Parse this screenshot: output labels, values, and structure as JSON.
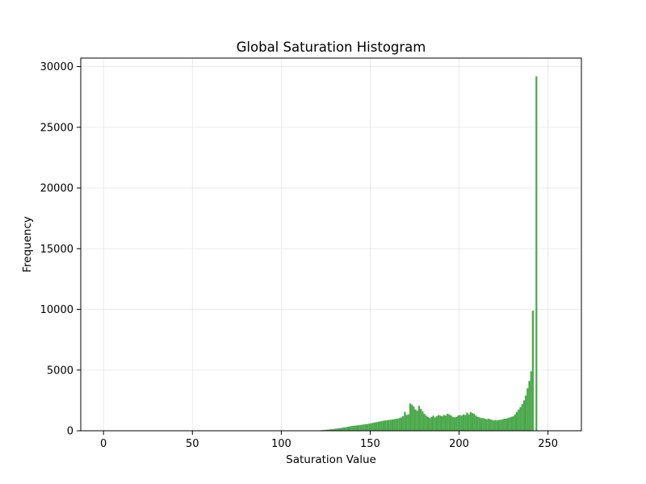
{
  "chart_data": {
    "type": "bar",
    "title": "Global Saturation Histogram",
    "xlabel": "Saturation Value",
    "ylabel": "Frequency",
    "xlim": [
      -12.8,
      268.8
    ],
    "ylim": [
      0,
      30700
    ],
    "xticks": [
      0,
      50,
      100,
      150,
      200,
      250
    ],
    "yticks": [
      0,
      5000,
      10000,
      15000,
      20000,
      25000,
      30000
    ],
    "grid": true,
    "bar_color": "#4aa84a",
    "bins_start": 120,
    "values": [
      0,
      0,
      50,
      60,
      70,
      90,
      100,
      120,
      130,
      150,
      170,
      190,
      210,
      230,
      260,
      280,
      300,
      330,
      360,
      390,
      410,
      430,
      440,
      460,
      480,
      500,
      520,
      540,
      560,
      590,
      620,
      650,
      680,
      710,
      740,
      770,
      800,
      830,
      850,
      870,
      890,
      910,
      930,
      950,
      980,
      1000,
      1050,
      1100,
      1200,
      1550,
      1300,
      1350,
      2250,
      2150,
      2000,
      1750,
      1650,
      2050,
      1800,
      1600,
      1400,
      1250,
      1150,
      1050,
      1150,
      1250,
      1100,
      1200,
      1300,
      1250,
      1200,
      1300,
      1250,
      1400,
      1350,
      1250,
      1150,
      1100,
      1150,
      1250,
      1300,
      1250,
      1350,
      1300,
      1500,
      1350,
      1550,
      1450,
      1400,
      1250,
      1150,
      1100,
      1050,
      1050,
      1000,
      950,
      1000,
      950,
      900,
      850,
      900,
      850,
      900,
      900,
      950,
      1000,
      1000,
      1050,
      1100,
      1150,
      1200,
      1350,
      1550,
      1750,
      1950,
      2200,
      2500,
      2900,
      3500,
      4100,
      4900,
      9900,
      0,
      29200
    ]
  }
}
